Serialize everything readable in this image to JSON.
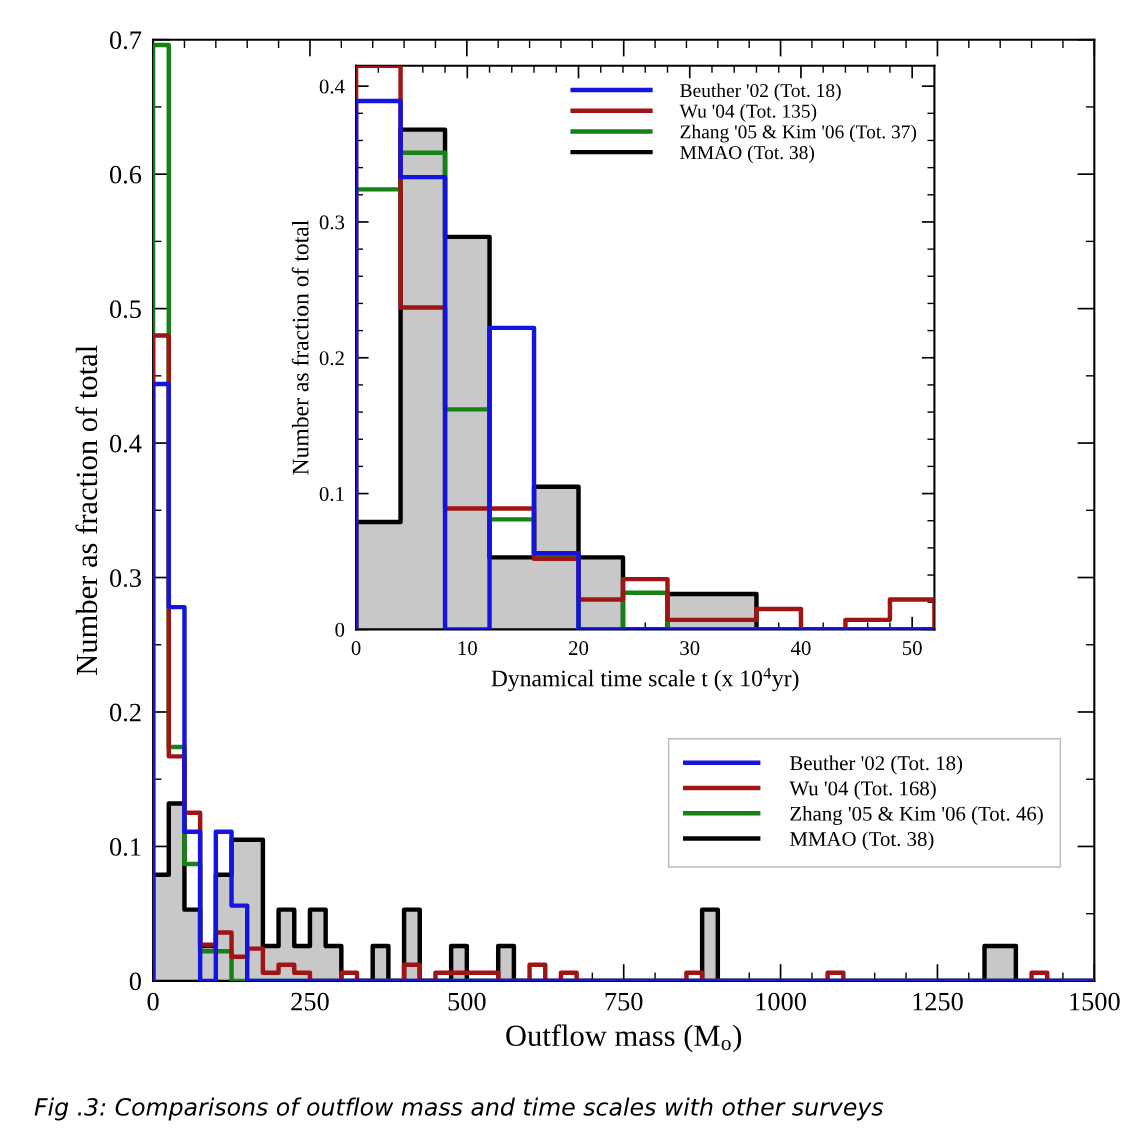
{
  "chart_data": [
    {
      "type": "histogram",
      "xlabel": "Outflow mass (M$_{o}$)",
      "ylabel": "Number as fraction of total",
      "legend": "bottom right",
      "grid": false,
      "bins": [
        0,
        25,
        50,
        75,
        100,
        125,
        150,
        175,
        200,
        225,
        250,
        275,
        300,
        325,
        350,
        375,
        400,
        425,
        450,
        475,
        500,
        525,
        550,
        575,
        600,
        625,
        650,
        675,
        700,
        725,
        750,
        775,
        800,
        825,
        850,
        875,
        900,
        925,
        950,
        975,
        1000,
        1025,
        1050,
        1075,
        1100,
        1125,
        1150,
        1175,
        1200,
        1225,
        1250,
        1275,
        1300,
        1325,
        1350,
        1375,
        1400,
        1425,
        1450,
        1475,
        1500
      ],
      "xlim": [
        0,
        1500
      ],
      "ylim": [
        0,
        0.7
      ],
      "xticks": [
        0,
        {
          "value": 50,
          "label": null
        },
        {
          "value": 100,
          "label": null
        },
        {
          "value": 150,
          "label": null
        },
        {
          "value": 200,
          "label": null
        },
        250,
        {
          "value": 300,
          "label": null
        },
        {
          "value": 350,
          "label": null
        },
        {
          "value": 400,
          "label": null
        },
        {
          "value": 450,
          "label": null
        },
        500,
        {
          "value": 550,
          "label": null
        },
        {
          "value": 600,
          "label": null
        },
        {
          "value": 650,
          "label": null
        },
        {
          "value": 700,
          "label": null
        },
        750,
        {
          "value": 800,
          "label": null
        },
        {
          "value": 850,
          "label": null
        },
        {
          "value": 900,
          "label": null
        },
        {
          "value": 950,
          "label": null
        },
        1000,
        {
          "value": 1050,
          "label": null
        },
        {
          "value": 1100,
          "label": null
        },
        {
          "value": 1150,
          "label": null
        },
        {
          "value": 1200,
          "label": null
        },
        1250,
        {
          "value": 1300,
          "label": null
        },
        {
          "value": 1350,
          "label": null
        },
        {
          "value": 1400,
          "label": null
        },
        {
          "value": 1450,
          "label": null
        },
        1500
      ],
      "yticks": [
        0,
        {
          "value": 0.05,
          "label": null
        },
        0.1,
        {
          "value": 0.15,
          "label": null
        },
        0.2,
        {
          "value": 0.25,
          "label": null
        },
        0.3,
        {
          "value": 0.35,
          "label": null
        },
        0.4,
        {
          "value": 0.45,
          "label": null
        },
        0.5,
        {
          "value": 0.55,
          "label": null
        },
        0.6,
        {
          "value": 0.65,
          "label": null
        },
        0.7
      ],
      "series": [
        {
          "name": "Beuther '02 (Tot. 18)",
          "color": "#1414e0",
          "values": [
            0.444,
            0.278,
            0.111,
            0,
            0.111,
            0.056,
            0,
            0,
            0,
            0,
            0,
            0,
            0,
            0,
            0,
            0,
            0,
            0,
            0,
            0,
            0,
            0,
            0,
            0,
            0,
            0,
            0,
            0,
            0,
            0,
            0,
            0,
            0,
            0,
            0,
            0,
            0,
            0,
            0,
            0,
            0,
            0,
            0,
            0,
            0,
            0,
            0,
            0,
            0,
            0,
            0,
            0,
            0,
            0,
            0,
            0,
            0,
            0,
            0,
            0
          ]
        },
        {
          "name": "Wu '04 (Tot. 168)",
          "color": "#a01414",
          "values": [
            0.48,
            0.167,
            0.125,
            0.027,
            0.036,
            0.018,
            0.024,
            0.006,
            0.012,
            0.006,
            0,
            0,
            0.006,
            0,
            0,
            0,
            0.012,
            0,
            0.006,
            0.006,
            0.006,
            0.006,
            0,
            0,
            0.012,
            0,
            0.006,
            0,
            0,
            0,
            0,
            0,
            0,
            0,
            0.006,
            0,
            0,
            0,
            0,
            0,
            0,
            0,
            0,
            0.006,
            0,
            0,
            0,
            0,
            0,
            0,
            0,
            0,
            0,
            0,
            0,
            0,
            0.006,
            0,
            0,
            0
          ]
        },
        {
          "name": "Zhang '05 & Kim '06 (Tot. 46)",
          "color": "#148214",
          "values": [
            0.696,
            0.174,
            0.087,
            0.022,
            0.022,
            0,
            0,
            0,
            0,
            0,
            0,
            0,
            0,
            0,
            0,
            0,
            0,
            0,
            0,
            0,
            0,
            0,
            0,
            0,
            0,
            0,
            0,
            0,
            0,
            0,
            0,
            0,
            0,
            0,
            0,
            0,
            0,
            0,
            0,
            0,
            0,
            0,
            0,
            0,
            0,
            0,
            0,
            0,
            0,
            0,
            0,
            0,
            0,
            0,
            0,
            0,
            0,
            0,
            0,
            0
          ]
        },
        {
          "name": "MMAO (Tot. 38)",
          "color": "#000000",
          "values": [
            0.079,
            0.132,
            0.053,
            0.026,
            0.079,
            0.105,
            0.105,
            0.026,
            0.053,
            0.026,
            0.053,
            0.026,
            0,
            0,
            0.026,
            0,
            0.053,
            0,
            0,
            0.026,
            0,
            0,
            0.026,
            0,
            0,
            0,
            0,
            0,
            0,
            0,
            0,
            0,
            0,
            0,
            0,
            0.053,
            0,
            0,
            0,
            0,
            0,
            0,
            0,
            0,
            0,
            0,
            0,
            0,
            0,
            0,
            0,
            0,
            0,
            0.026,
            0.026,
            0,
            0,
            0,
            0,
            0
          ]
        }
      ],
      "annotations": [
        "Fig .3: Comparisons of outflow mass and time scales with other surveys"
      ]
    },
    {
      "type": "histogram",
      "xlabel": "Dynamical time scale t (x 10$^{4}$yr)",
      "ylabel": "Number as fraction of total",
      "legend": "top right",
      "grid": false,
      "bins": [
        0,
        4,
        8,
        12,
        16,
        20,
        24,
        28,
        32,
        36,
        40,
        44,
        48,
        52
      ],
      "xlim": [
        0,
        52
      ],
      "ylim": [
        0,
        0.415
      ],
      "xticks": [
        0,
        {
          "value": 2,
          "label": null
        },
        {
          "value": 4,
          "label": null
        },
        {
          "value": 6,
          "label": null
        },
        {
          "value": 8,
          "label": null
        },
        10,
        {
          "value": 12,
          "label": null
        },
        {
          "value": 14,
          "label": null
        },
        {
          "value": 16,
          "label": null
        },
        {
          "value": 18,
          "label": null
        },
        20,
        {
          "value": 22,
          "label": null
        },
        {
          "value": 24,
          "label": null
        },
        {
          "value": 26,
          "label": null
        },
        {
          "value": 28,
          "label": null
        },
        30,
        {
          "value": 32,
          "label": null
        },
        {
          "value": 34,
          "label": null
        },
        {
          "value": 36,
          "label": null
        },
        {
          "value": 38,
          "label": null
        },
        40,
        {
          "value": 42,
          "label": null
        },
        {
          "value": 44,
          "label": null
        },
        {
          "value": 46,
          "label": null
        },
        {
          "value": 48,
          "label": null
        },
        50
      ],
      "yticks": [
        0,
        {
          "value": 0.02,
          "label": null
        },
        {
          "value": 0.04,
          "label": null
        },
        {
          "value": 0.06,
          "label": null
        },
        {
          "value": 0.08,
          "label": null
        },
        0.1,
        {
          "value": 0.12,
          "label": null
        },
        {
          "value": 0.14,
          "label": null
        },
        {
          "value": 0.16,
          "label": null
        },
        {
          "value": 0.18,
          "label": null
        },
        0.2,
        {
          "value": 0.22,
          "label": null
        },
        {
          "value": 0.24,
          "label": null
        },
        {
          "value": 0.26,
          "label": null
        },
        {
          "value": 0.28,
          "label": null
        },
        0.3,
        {
          "value": 0.32,
          "label": null
        },
        {
          "value": 0.34,
          "label": null
        },
        {
          "value": 0.36,
          "label": null
        },
        {
          "value": 0.38,
          "label": null
        },
        0.4
      ],
      "series": [
        {
          "name": "Beuther '02 (Tot. 18)",
          "color": "#1414e0",
          "values": [
            0.389,
            0.333,
            0,
            0.222,
            0.056,
            0,
            0,
            0,
            0,
            0,
            0,
            0,
            0
          ]
        },
        {
          "name": "Wu '04 (Tot. 135)",
          "color": "#a01414",
          "values": [
            0.415,
            0.237,
            0.089,
            0.089,
            0.052,
            0.022,
            0.037,
            0.007,
            0.007,
            0.015,
            0,
            0.007,
            0.022
          ]
        },
        {
          "name": "Zhang '05 & Kim '06 (Tot. 37)",
          "color": "#148214",
          "values": [
            0.324,
            0.351,
            0.162,
            0.081,
            0.054,
            0,
            0.027,
            0,
            0,
            0,
            0,
            0,
            0
          ]
        },
        {
          "name": "MMAO (Tot. 38)",
          "color": "#000000",
          "values": [
            0.079,
            0.368,
            0.289,
            0.053,
            0.105,
            0.053,
            0,
            0.026,
            0.026,
            0,
            0,
            0,
            0
          ]
        }
      ]
    }
  ]
}
